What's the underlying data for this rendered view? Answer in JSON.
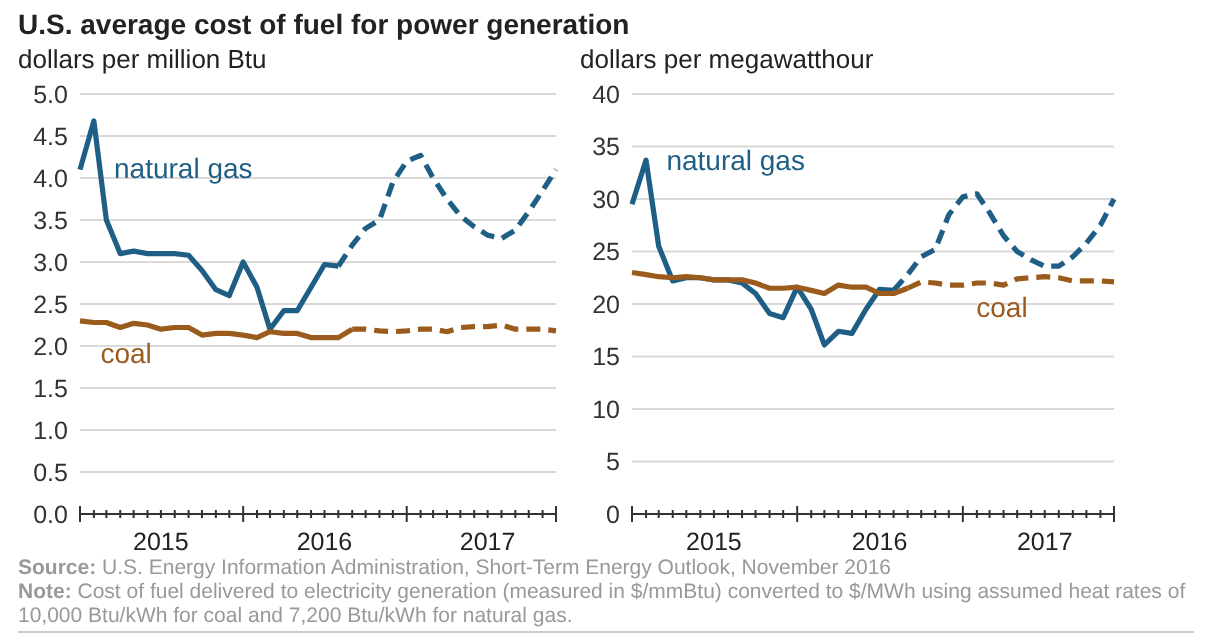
{
  "chart_data": [
    {
      "type": "line",
      "title": "U.S. average cost of fuel for power generation",
      "ylabel": "dollars per million Btu",
      "x": [
        "2015-01",
        "2015-02",
        "2015-03",
        "2015-04",
        "2015-05",
        "2015-06",
        "2015-07",
        "2015-08",
        "2015-09",
        "2015-10",
        "2015-11",
        "2015-12",
        "2016-01",
        "2016-02",
        "2016-03",
        "2016-04",
        "2016-05",
        "2016-06",
        "2016-07",
        "2016-08",
        "2016-09",
        "2016-10",
        "2016-11",
        "2016-12",
        "2017-01",
        "2017-02",
        "2017-03",
        "2017-04",
        "2017-05",
        "2017-06",
        "2017-07",
        "2017-08",
        "2017-09",
        "2017-10",
        "2017-11",
        "2017-12"
      ],
      "xlim": [
        "2015-01",
        "2017-12"
      ],
      "xticks": [
        {
          "value": "2015-01",
          "label": null
        },
        {
          "value": "2015-02",
          "label": null
        },
        {
          "value": "2015-03",
          "label": null
        },
        {
          "value": "2015-04",
          "label": null
        },
        {
          "value": "2015-05",
          "label": null
        },
        {
          "value": "2015-06",
          "label": null
        },
        {
          "value": "2015-07",
          "label": "2015"
        },
        {
          "value": "2015-08",
          "label": null
        },
        {
          "value": "2015-09",
          "label": null
        },
        {
          "value": "2015-10",
          "label": null
        },
        {
          "value": "2015-11",
          "label": null
        },
        {
          "value": "2015-12",
          "label": null
        },
        {
          "value": "2016-01",
          "label": null
        },
        {
          "value": "2016-02",
          "label": null
        },
        {
          "value": "2016-03",
          "label": null
        },
        {
          "value": "2016-04",
          "label": null
        },
        {
          "value": "2016-05",
          "label": null
        },
        {
          "value": "2016-06",
          "label": null
        },
        {
          "value": "2016-07",
          "label": "2016"
        },
        {
          "value": "2016-08",
          "label": null
        },
        {
          "value": "2016-09",
          "label": null
        },
        {
          "value": "2016-10",
          "label": null
        },
        {
          "value": "2016-11",
          "label": null
        },
        {
          "value": "2016-12",
          "label": null
        },
        {
          "value": "2017-01",
          "label": null
        },
        {
          "value": "2017-02",
          "label": null
        },
        {
          "value": "2017-03",
          "label": null
        },
        {
          "value": "2017-04",
          "label": null
        },
        {
          "value": "2017-05",
          "label": null
        },
        {
          "value": "2017-06",
          "label": null
        },
        {
          "value": "2017-07",
          "label": "2017"
        },
        {
          "value": "2017-08",
          "label": null
        },
        {
          "value": "2017-09",
          "label": null
        },
        {
          "value": "2017-10",
          "label": null
        },
        {
          "value": "2017-11",
          "label": null
        },
        {
          "value": "2017-12",
          "label": null
        }
      ],
      "ylim": [
        0,
        5
      ],
      "yticks": [
        {
          "value": 0,
          "label": "0.0"
        },
        0.5,
        {
          "value": 1,
          "label": "1.0"
        },
        1.5,
        {
          "value": 2,
          "label": "2.0"
        },
        2.5,
        {
          "value": 3,
          "label": "3.0"
        },
        3.5,
        {
          "value": 4,
          "label": "4.0"
        },
        4.5,
        {
          "value": 5,
          "label": "5.0"
        }
      ],
      "grid": "y",
      "marker": "none",
      "series": [
        {
          "name": "natural gas",
          "color": "#1f5f86",
          "line_style": "solid",
          "values": [
            4.1,
            4.68,
            3.5,
            3.1,
            3.13,
            3.1,
            3.1,
            3.1,
            3.08,
            2.9,
            2.67,
            2.6,
            3.0,
            2.7,
            2.2,
            2.42,
            2.42,
            2.7,
            2.97,
            2.95,
            null,
            null,
            null,
            null,
            null,
            null,
            null,
            null,
            null,
            null,
            null,
            null,
            null,
            null,
            null,
            null
          ]
        },
        {
          "color": "#1f5f86",
          "line_style": "dashed",
          "values": [
            null,
            null,
            null,
            null,
            null,
            null,
            null,
            null,
            null,
            null,
            null,
            null,
            null,
            null,
            null,
            null,
            null,
            null,
            null,
            2.95,
            3.2,
            3.4,
            3.5,
            3.95,
            4.2,
            4.27,
            4.0,
            3.75,
            3.55,
            3.42,
            3.32,
            3.28,
            3.38,
            3.6,
            3.85,
            4.1
          ]
        },
        {
          "name": "coal",
          "color": "#9a5b1c",
          "line_style": "solid",
          "values": [
            2.3,
            2.28,
            2.28,
            2.22,
            2.27,
            2.25,
            2.2,
            2.22,
            2.22,
            2.13,
            2.15,
            2.15,
            2.13,
            2.1,
            2.17,
            2.15,
            2.15,
            2.1,
            2.1,
            2.1,
            2.2,
            null,
            null,
            null,
            null,
            null,
            null,
            null,
            null,
            null,
            null,
            null,
            null,
            null,
            null,
            null
          ]
        },
        {
          "color": "#9a5b1c",
          "line_style": "dashed",
          "values": [
            null,
            null,
            null,
            null,
            null,
            null,
            null,
            null,
            null,
            null,
            null,
            null,
            null,
            null,
            null,
            null,
            null,
            null,
            null,
            null,
            2.2,
            2.2,
            2.18,
            2.17,
            2.18,
            2.2,
            2.2,
            2.17,
            2.22,
            2.23,
            2.23,
            2.25,
            2.2,
            2.2,
            2.2,
            2.18
          ]
        }
      ],
      "annotations": [
        "Source: U.S. Energy Information Administration, Short-Term Energy Outlook, November 2016",
        "Note: Cost of fuel delivered to electricity generation (measured in $/mmBtu) converted to $/MWh using assumed heat rates of",
        "10,000 Btu/kWh for coal and 7,200 Btu/kWh for natural gas."
      ]
    },
    {
      "type": "line",
      "ylabel": "dollars per megawatthour",
      "x": [
        "2015-01",
        "2015-02",
        "2015-03",
        "2015-04",
        "2015-05",
        "2015-06",
        "2015-07",
        "2015-08",
        "2015-09",
        "2015-10",
        "2015-11",
        "2015-12",
        "2016-01",
        "2016-02",
        "2016-03",
        "2016-04",
        "2016-05",
        "2016-06",
        "2016-07",
        "2016-08",
        "2016-09",
        "2016-10",
        "2016-11",
        "2016-12",
        "2017-01",
        "2017-02",
        "2017-03",
        "2017-04",
        "2017-05",
        "2017-06",
        "2017-07",
        "2017-08",
        "2017-09",
        "2017-10",
        "2017-11",
        "2017-12"
      ],
      "xlim": [
        "2015-01",
        "2017-12"
      ],
      "xticks": [
        {
          "value": "2015-01",
          "label": null
        },
        {
          "value": "2015-02",
          "label": null
        },
        {
          "value": "2015-03",
          "label": null
        },
        {
          "value": "2015-04",
          "label": null
        },
        {
          "value": "2015-05",
          "label": null
        },
        {
          "value": "2015-06",
          "label": null
        },
        {
          "value": "2015-07",
          "label": "2015"
        },
        {
          "value": "2015-08",
          "label": null
        },
        {
          "value": "2015-09",
          "label": null
        },
        {
          "value": "2015-10",
          "label": null
        },
        {
          "value": "2015-11",
          "label": null
        },
        {
          "value": "2015-12",
          "label": null
        },
        {
          "value": "2016-01",
          "label": null
        },
        {
          "value": "2016-02",
          "label": null
        },
        {
          "value": "2016-03",
          "label": null
        },
        {
          "value": "2016-04",
          "label": null
        },
        {
          "value": "2016-05",
          "label": null
        },
        {
          "value": "2016-06",
          "label": null
        },
        {
          "value": "2016-07",
          "label": "2016"
        },
        {
          "value": "2016-08",
          "label": null
        },
        {
          "value": "2016-09",
          "label": null
        },
        {
          "value": "2016-10",
          "label": null
        },
        {
          "value": "2016-11",
          "label": null
        },
        {
          "value": "2016-12",
          "label": null
        },
        {
          "value": "2017-01",
          "label": null
        },
        {
          "value": "2017-02",
          "label": null
        },
        {
          "value": "2017-03",
          "label": null
        },
        {
          "value": "2017-04",
          "label": null
        },
        {
          "value": "2017-05",
          "label": null
        },
        {
          "value": "2017-06",
          "label": null
        },
        {
          "value": "2017-07",
          "label": "2017"
        },
        {
          "value": "2017-08",
          "label": null
        },
        {
          "value": "2017-09",
          "label": null
        },
        {
          "value": "2017-10",
          "label": null
        },
        {
          "value": "2017-11",
          "label": null
        },
        {
          "value": "2017-12",
          "label": null
        }
      ],
      "ylim": [
        0,
        40
      ],
      "yticks": [
        0,
        5,
        10,
        15,
        20,
        25,
        30,
        35,
        40
      ],
      "grid": "y",
      "marker": "none",
      "series": [
        {
          "name": "natural gas",
          "color": "#1f5f86",
          "line_style": "solid",
          "values": [
            29.5,
            33.7,
            25.5,
            22.2,
            22.5,
            22.5,
            22.3,
            22.3,
            22,
            21,
            19.1,
            18.7,
            21.6,
            19.5,
            16.1,
            17.4,
            17.2,
            19.5,
            21.4,
            21.3,
            null,
            null,
            null,
            null,
            null,
            null,
            null,
            null,
            null,
            null,
            null,
            null,
            null,
            null,
            null,
            null
          ]
        },
        {
          "color": "#1f5f86",
          "line_style": "dashed",
          "values": [
            null,
            null,
            null,
            null,
            null,
            null,
            null,
            null,
            null,
            null,
            null,
            null,
            null,
            null,
            null,
            null,
            null,
            null,
            null,
            21.3,
            22.8,
            24.5,
            25.2,
            28.5,
            30.2,
            30.5,
            28.7,
            26.5,
            25,
            24.2,
            23.6,
            23.6,
            24.5,
            25.8,
            27.5,
            30
          ]
        },
        {
          "name": "coal",
          "color": "#9a5b1c",
          "line_style": "solid",
          "values": [
            23,
            22.8,
            22.6,
            22.5,
            22.6,
            22.5,
            22.3,
            22.3,
            22.3,
            22,
            21.5,
            21.5,
            21.6,
            21.3,
            21,
            21.8,
            21.6,
            21.6,
            21,
            21,
            21.5,
            null,
            null,
            null,
            null,
            null,
            null,
            null,
            null,
            null,
            null,
            null,
            null,
            null,
            null,
            null
          ]
        },
        {
          "color": "#9a5b1c",
          "line_style": "dashed",
          "values": [
            null,
            null,
            null,
            null,
            null,
            null,
            null,
            null,
            null,
            null,
            null,
            null,
            null,
            null,
            null,
            null,
            null,
            null,
            null,
            null,
            21.5,
            22.1,
            22,
            21.8,
            21.8,
            22,
            22,
            21.8,
            22.4,
            22.5,
            22.6,
            22.5,
            22.2,
            22.2,
            22.2,
            22.1
          ]
        }
      ]
    }
  ]
}
